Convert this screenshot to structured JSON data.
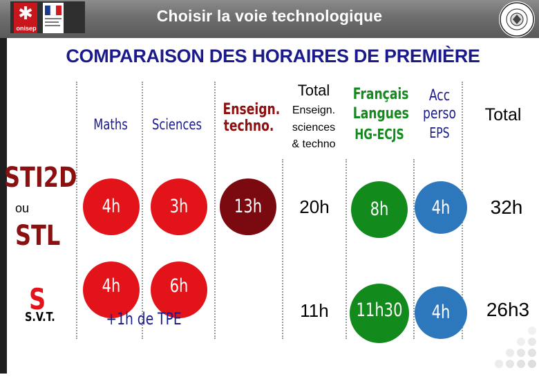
{
  "header": {
    "title": "Choisir la voie technologique",
    "logo_text": "onisep"
  },
  "heading": "COMPARAISON DES HORAIRES DE PREMIÈRE",
  "columns": {
    "maths": "Maths",
    "sciences": "Sciences",
    "enseign_techno_1": "Enseign.",
    "enseign_techno_2": "techno.",
    "total_enseign_1": "Total",
    "total_enseign_2": "Enseign.",
    "total_enseign_3": "sciences",
    "total_enseign_4": "& techno",
    "francais_1": "Français",
    "francais_2": "Langues",
    "francais_3": "HG-ECJS",
    "acc_1": "Acc",
    "acc_2": "perso",
    "acc_3": "EPS",
    "total": "Total"
  },
  "rows": {
    "sti2d": {
      "label_1": "STI2D",
      "label_or": "ou",
      "label_2": "STL",
      "maths": "4h",
      "sciences": "3h",
      "techno": "13h",
      "total_enseign": "20h",
      "francais": "8h",
      "acc": "4h",
      "total": "32h"
    },
    "s": {
      "label_1": "S",
      "label_2": "S.V.T.",
      "maths": "4h",
      "sciences": "6h",
      "tpe": "+1h de TPE",
      "total_enseign": "11h",
      "francais": "11h30",
      "acc": "4h",
      "total": "26h3"
    }
  },
  "colors": {
    "red": "#e2141a",
    "dark_red": "#7a0a10",
    "green": "#128a1c",
    "blue": "#2d78bd",
    "navy": "#1a1a8c"
  }
}
